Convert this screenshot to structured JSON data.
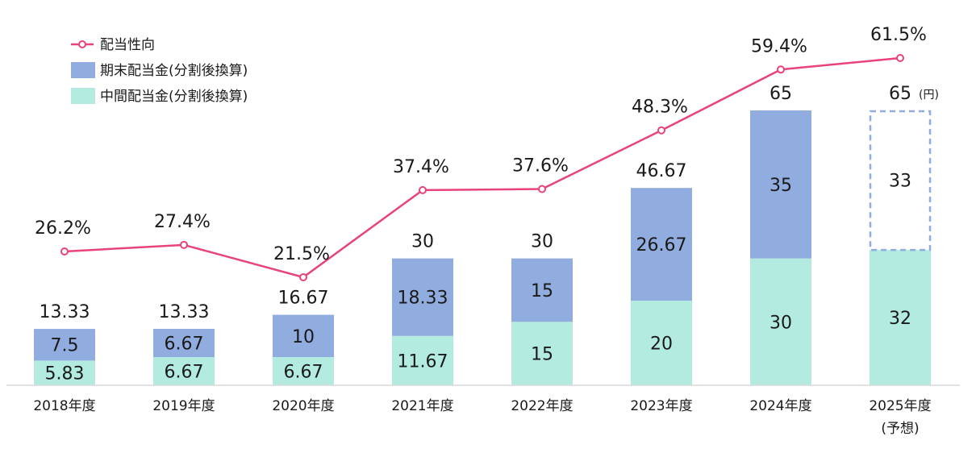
{
  "chart_data": {
    "type": "bar",
    "unit_label": "(円)",
    "categories": [
      "2018年度",
      "2019年度",
      "2020年度",
      "2021年度",
      "2022年度",
      "2023年度",
      "2024年度",
      "2025年度"
    ],
    "forecast_note": "(予想)",
    "series": [
      {
        "name": "中間配当金(分割後換算)",
        "values": [
          5.83,
          6.67,
          6.67,
          11.67,
          15,
          20,
          30,
          32
        ],
        "labels": [
          "5.83",
          "6.67",
          "6.67",
          "11.67",
          "15",
          "20",
          "30",
          "32"
        ]
      },
      {
        "name": "期末配当金(分割後換算)",
        "values": [
          7.5,
          6.67,
          10,
          18.33,
          15,
          26.67,
          35,
          33
        ],
        "labels": [
          "7.5",
          "6.67",
          "10",
          "18.33",
          "15",
          "26.67",
          "35",
          "33"
        ]
      }
    ],
    "totals": [
      "13.33",
      "13.33",
      "16.67",
      "30",
      "30",
      "46.67",
      "65",
      "65"
    ],
    "line": {
      "name": "配当性向",
      "values": [
        26.2,
        27.4,
        21.5,
        37.4,
        37.6,
        48.3,
        59.4,
        61.5
      ],
      "labels": [
        "26.2%",
        "27.4%",
        "21.5%",
        "37.4%",
        "37.6%",
        "48.3%",
        "59.4%",
        "61.5%"
      ]
    },
    "forecast_index": 7,
    "colors": {
      "interim": "#b3ebe1",
      "final": "#91acdf",
      "line": "#e8447a",
      "forecast_border": "#91acdf",
      "axis": "#d9d9d9",
      "text": "#1a1a1a"
    }
  }
}
